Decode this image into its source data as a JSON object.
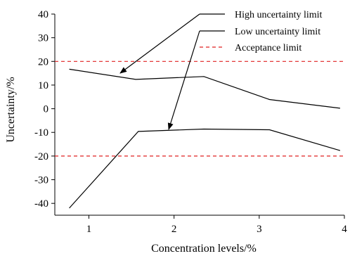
{
  "chart_data": {
    "type": "line",
    "title": "",
    "xlabel": "Concentration levels/%",
    "ylabel": "Uncertainty/%",
    "xlim": [
      0.6,
      4.0
    ],
    "ylim": [
      -45,
      40
    ],
    "xticks": [
      1,
      2,
      3,
      4
    ],
    "yticks": [
      40,
      30,
      20,
      10,
      0,
      -10,
      -20,
      -30,
      -40
    ],
    "grid": false,
    "legend_position": "top-right",
    "series": [
      {
        "name": "High uncertainty limit",
        "color": "#000000",
        "style": "solid",
        "points": [
          [
            0.77,
            16.7
          ],
          [
            1.55,
            12.4
          ],
          [
            2.35,
            13.6
          ],
          [
            3.12,
            3.9
          ],
          [
            3.95,
            0.2
          ]
        ]
      },
      {
        "name": "Low uncertainty limit",
        "color": "#000000",
        "style": "solid",
        "points": [
          [
            0.77,
            -42.0
          ],
          [
            1.58,
            -9.6
          ],
          [
            2.35,
            -8.6
          ],
          [
            3.12,
            -8.9
          ],
          [
            3.95,
            -17.7
          ]
        ]
      },
      {
        "name": "Acceptance limit",
        "color": "#e02020",
        "style": "dashed",
        "hlines": [
          20,
          -20
        ]
      }
    ]
  }
}
